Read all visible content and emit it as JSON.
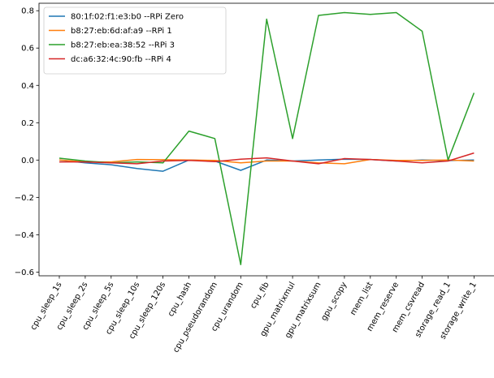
{
  "chart_data": {
    "type": "line",
    "title": "",
    "xlabel": "",
    "ylabel": "",
    "ylim": [
      -0.62,
      0.84
    ],
    "yticks": [
      -0.6,
      -0.4,
      -0.2,
      0.0,
      0.2,
      0.4,
      0.6,
      0.8
    ],
    "ytick_labels": [
      "−0.6",
      "−0.4",
      "−0.2",
      "0.0",
      "0.2",
      "0.4",
      "0.6",
      "0.8"
    ],
    "grid": false,
    "legend_position": "top-left",
    "categories": [
      "cpu_sleep_1s",
      "cpu_sleep_2s",
      "cpu_sleep_5s",
      "cpu_sleep_10s",
      "cpu_sleep_120s",
      "cpu_hash",
      "cpu_pseudorandom",
      "cpu_urandom",
      "cpu_fib",
      "gpu_matrixmul",
      "gpu_matrixsum",
      "gpu_scopy",
      "mem_list",
      "mem_reserve",
      "mem_csvread",
      "storage_read_1",
      "storage_write_1"
    ],
    "series": [
      {
        "name": "80:1f:02:f1:e3:b0 --RPi Zero",
        "color": "#1f77b4",
        "values": [
          0.0,
          -0.015,
          -0.025,
          -0.045,
          -0.06,
          0.0,
          -0.005,
          -0.055,
          0.0,
          -0.005,
          0.0,
          0.005,
          0.003,
          -0.005,
          0.0,
          -0.003,
          0.0
        ]
      },
      {
        "name": "b8:27:eb:6d:af:a9 --RPi 1",
        "color": "#ff7f0e",
        "values": [
          0.0,
          -0.01,
          -0.01,
          0.003,
          0.002,
          0.0,
          -0.002,
          -0.015,
          -0.005,
          -0.005,
          -0.015,
          -0.02,
          0.003,
          -0.002,
          -0.002,
          0.0,
          -0.005
        ]
      },
      {
        "name": "b8:27:eb:ea:38:52 --RPi 3",
        "color": "#2ca02c",
        "values": [
          0.01,
          -0.005,
          -0.015,
          -0.01,
          -0.015,
          0.155,
          0.115,
          -0.56,
          0.755,
          0.115,
          0.775,
          0.79,
          0.78,
          0.79,
          0.69,
          0.0,
          0.36
        ]
      },
      {
        "name": "dc:a6:32:4c:90:fb --RPi 4",
        "color": "#d62728",
        "values": [
          -0.01,
          -0.01,
          -0.015,
          -0.02,
          -0.005,
          -0.002,
          -0.008,
          0.005,
          0.012,
          -0.005,
          -0.02,
          0.008,
          0.003,
          -0.005,
          -0.015,
          -0.005,
          0.038
        ]
      }
    ]
  }
}
